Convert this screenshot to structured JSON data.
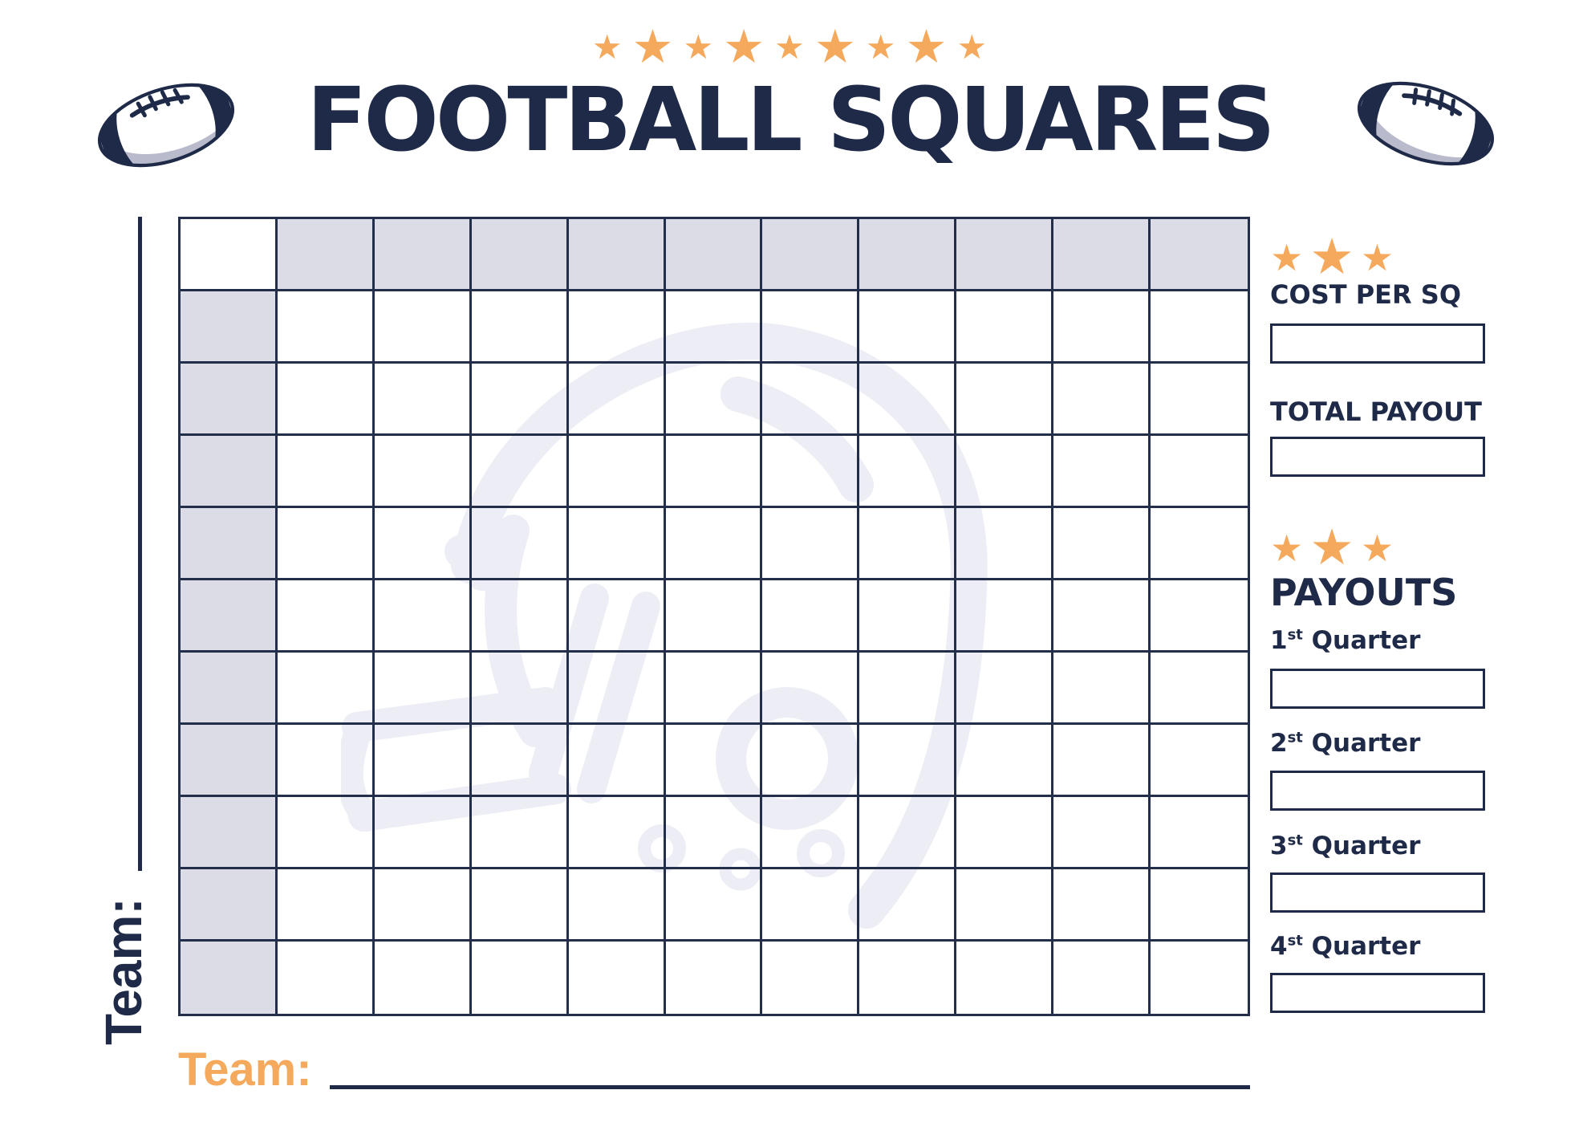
{
  "header": {
    "stars": [
      "s",
      "l",
      "s",
      "l",
      "s",
      "l",
      "s",
      "l",
      "s"
    ],
    "star_glyph": "★",
    "title": "FOOTBALL SQUARES"
  },
  "grid": {
    "rows": 11,
    "cols": 11,
    "description": "10x10 football squares grid with blank shaded header row and header column"
  },
  "sidebar": {
    "stars_glyph": "★",
    "cost": {
      "label": "COST PER SQ",
      "value": ""
    },
    "total": {
      "label": "TOTAL PAYOUT",
      "value": ""
    },
    "payouts_title": "PAYOUTS",
    "quarters": [
      {
        "num": "1",
        "sup": "st",
        "word": "Quarter",
        "value": ""
      },
      {
        "num": "2",
        "sup": "st",
        "word": "Quarter",
        "value": ""
      },
      {
        "num": "3",
        "sup": "st",
        "word": "Quarter",
        "value": ""
      },
      {
        "num": "4",
        "sup": "st",
        "word": "Quarter",
        "value": ""
      }
    ]
  },
  "team_left": {
    "label": "Team:"
  },
  "team_bottom": {
    "label": "Team:"
  },
  "colors": {
    "navy": "#1E2A47",
    "grid_line": "#232E4A",
    "orange_star": "#F5A95C",
    "orange_team": "#F5A95C",
    "shaded_cell": "#DCDCE7",
    "watermark": "#ECEDF5",
    "football_gray": "#B9BACB"
  }
}
